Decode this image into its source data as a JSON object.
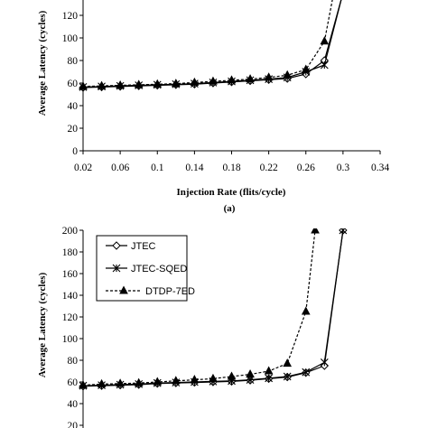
{
  "chart_data": [
    {
      "type": "line",
      "panel": "(a)",
      "xlabel": "Injection Rate (flits/cycle)",
      "ylabel": "Average Latency (cycles)",
      "xlim": [
        0.02,
        0.34
      ],
      "ylim": [
        0,
        120
      ],
      "x_ticks": [
        0.02,
        0.06,
        0.1,
        0.14,
        0.18,
        0.22,
        0.26,
        0.3,
        0.34
      ],
      "x_tick_labels": [
        "0.02",
        "0.06",
        "0.1",
        "0.14",
        "0.18",
        "0.22",
        "0.26",
        "0.3",
        "0.34"
      ],
      "y_ticks": [
        0,
        20,
        40,
        60,
        80,
        100,
        120
      ],
      "y_tick_labels": [
        "0",
        "20",
        "40",
        "60",
        "80",
        "100",
        "120"
      ],
      "grid": false,
      "legend": "none",
      "series": [
        {
          "marker": "diamond",
          "dash": "solid",
          "x": [
            0.02,
            0.04,
            0.06,
            0.08,
            0.1,
            0.12,
            0.14,
            0.16,
            0.18,
            0.2,
            0.22,
            0.24,
            0.26,
            0.28,
            0.3
          ],
          "y": [
            56,
            56.5,
            57,
            57.5,
            58,
            58.5,
            59,
            60,
            61,
            62,
            63,
            64,
            68,
            80,
            140
          ]
        },
        {
          "marker": "star",
          "dash": "solid",
          "x": [
            0.02,
            0.04,
            0.06,
            0.08,
            0.1,
            0.12,
            0.14,
            0.16,
            0.18,
            0.2,
            0.22,
            0.24,
            0.26,
            0.28,
            0.3
          ],
          "y": [
            56.5,
            57,
            57.5,
            58,
            58.5,
            59,
            59.5,
            60.5,
            61.5,
            62.5,
            63.5,
            65,
            70,
            76,
            140
          ]
        },
        {
          "marker": "triangle",
          "dash": "dashed",
          "x": [
            0.02,
            0.04,
            0.06,
            0.08,
            0.1,
            0.12,
            0.14,
            0.16,
            0.18,
            0.2,
            0.22,
            0.24,
            0.26,
            0.28,
            0.29
          ],
          "y": [
            57,
            57.5,
            58,
            58.5,
            59,
            59.5,
            60.5,
            61.5,
            62.5,
            63.5,
            65,
            67,
            72,
            97,
            140
          ]
        }
      ]
    },
    {
      "type": "line",
      "ylabel": "Average Latency (cycles)",
      "xlim": [
        0.02,
        0.34
      ],
      "ylim": [
        0,
        200
      ],
      "y_ticks": [
        20,
        40,
        60,
        80,
        100,
        120,
        140,
        160,
        180,
        200
      ],
      "y_tick_labels": [
        "20",
        "40",
        "60",
        "80",
        "100",
        "120",
        "140",
        "160",
        "180",
        "200"
      ],
      "grid": false,
      "legend": "top-left",
      "series": [
        {
          "name": "JTEC",
          "marker": "diamond",
          "dash": "solid",
          "x": [
            0.02,
            0.04,
            0.06,
            0.08,
            0.1,
            0.12,
            0.14,
            0.16,
            0.18,
            0.2,
            0.22,
            0.24,
            0.26,
            0.28,
            0.3
          ],
          "y": [
            56,
            56.5,
            57,
            57.5,
            58.5,
            59,
            59.5,
            60,
            60.5,
            61.5,
            63,
            64.5,
            68.5,
            75,
            200
          ]
        },
        {
          "name": "JTEC-SQED",
          "marker": "star",
          "dash": "solid",
          "x": [
            0.02,
            0.04,
            0.06,
            0.08,
            0.1,
            0.12,
            0.14,
            0.16,
            0.18,
            0.2,
            0.22,
            0.24,
            0.26,
            0.28,
            0.3
          ],
          "y": [
            56.5,
            57,
            57.5,
            58,
            59,
            59.5,
            60,
            60.5,
            61,
            62,
            63.5,
            65,
            69,
            78,
            200
          ]
        },
        {
          "name": "DTDP-7ED",
          "marker": "triangle",
          "dash": "dashed",
          "x": [
            0.02,
            0.04,
            0.06,
            0.08,
            0.1,
            0.12,
            0.14,
            0.16,
            0.18,
            0.2,
            0.22,
            0.24,
            0.26,
            0.27
          ],
          "y": [
            57,
            58,
            58.5,
            59,
            60,
            61,
            62,
            63,
            65,
            67,
            70,
            77,
            125,
            200
          ]
        }
      ]
    }
  ]
}
